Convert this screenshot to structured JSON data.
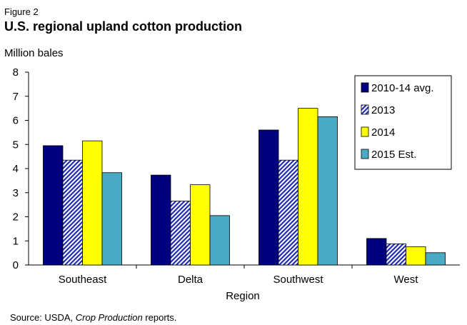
{
  "figure_label": "Figure 2",
  "chart_data": {
    "type": "bar",
    "title": "U.S. regional upland cotton production",
    "ylabel": "Million bales",
    "xlabel": "Region",
    "ylim": [
      0,
      8
    ],
    "yticks": [
      0,
      1,
      2,
      3,
      4,
      5,
      6,
      7,
      8
    ],
    "categories": [
      "Southeast",
      "Delta",
      "Southwest",
      "West"
    ],
    "series": [
      {
        "name": "2010-14 avg.",
        "color": "#00007f",
        "pattern": "solid",
        "values": [
          4.95,
          3.73,
          5.6,
          1.1
        ]
      },
      {
        "name": "2013",
        "color": "#1f2eb8",
        "pattern": "diagonal-hatch",
        "values": [
          4.35,
          2.65,
          4.35,
          0.88
        ]
      },
      {
        "name": "2014",
        "color": "#ffff00",
        "pattern": "solid",
        "values": [
          5.15,
          3.33,
          6.5,
          0.76
        ]
      },
      {
        "name": "2015 Est.",
        "color": "#4aa9c3",
        "pattern": "solid",
        "values": [
          3.83,
          2.05,
          6.15,
          0.51
        ]
      }
    ],
    "legend_position": "top-right",
    "grid": false
  },
  "source": {
    "prefix": "Source:  USDA, ",
    "italic": "Crop Production",
    "suffix": " reports."
  }
}
